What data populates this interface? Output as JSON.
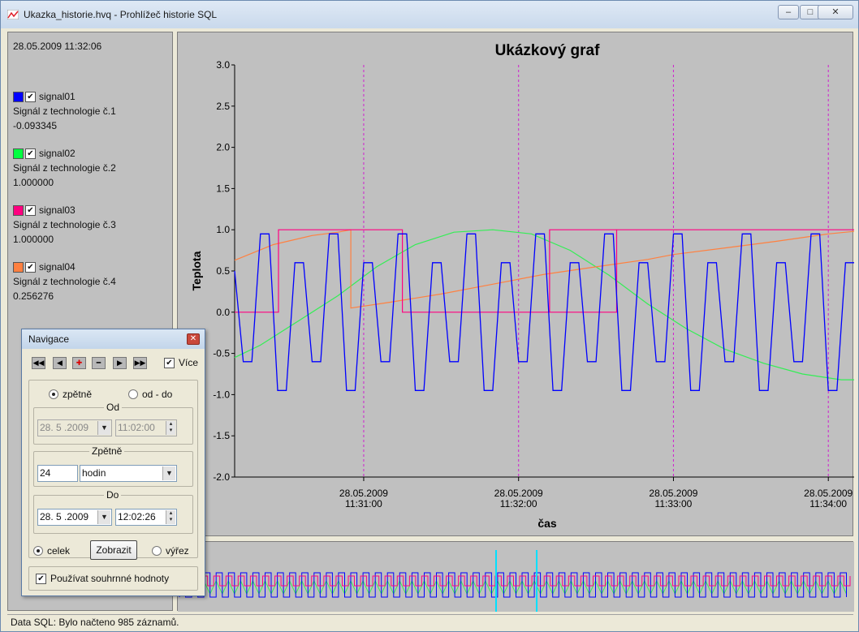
{
  "window": {
    "title": "Ukazka_historie.hvq - Prohlížeč historie SQL",
    "minimize": "‒",
    "maximize": "□",
    "close": "✕"
  },
  "left_panel": {
    "datetime": "28.05.2009  11:32:06",
    "signals": [
      {
        "name": "signal01",
        "description": "Signál z technologie č.1",
        "value": "-0.093345",
        "color": "#0000ff",
        "checked": true
      },
      {
        "name": "signal02",
        "description": "Signál z technologie č.2",
        "value": "1.000000",
        "color": "#00ff40",
        "checked": true
      },
      {
        "name": "signal03",
        "description": "Signál z technologie č.3",
        "value": "1.000000",
        "color": "#ff0080",
        "checked": true
      },
      {
        "name": "signal04",
        "description": "Signál z technologie č.4",
        "value": "0.256276",
        "color": "#ff8040",
        "checked": true
      }
    ]
  },
  "chart_data": {
    "type": "line",
    "title": "Ukázkový graf",
    "xlabel": "čas",
    "ylabel": "Teplota",
    "ylim": [
      -2.0,
      3.0
    ],
    "yticks": [
      "3.0",
      "2.5",
      "2.0",
      "1.5",
      "1.0",
      "0.5",
      "0.0",
      "-0.5",
      "-1.0",
      "-1.5",
      "-2.0"
    ],
    "xticks": [
      {
        "date": "28.05.2009",
        "time": "11:31:00"
      },
      {
        "date": "28.05.2009",
        "time": "11:32:00"
      },
      {
        "date": "28.05.2009",
        "time": "11:33:00"
      },
      {
        "date": "28.05.2009",
        "time": "11:34:00"
      }
    ],
    "x_seconds_range": [
      10,
      250
    ],
    "series": [
      {
        "name": "signal01",
        "color": "#0000ff",
        "pattern_y": [
          0.5,
          -0.6,
          -0.6,
          0.95,
          0.95,
          -0.95,
          -0.95,
          0.6,
          0.6,
          -0.6,
          -0.6,
          0.95,
          0.95,
          -0.95,
          -0.95,
          0.6,
          0.6,
          -0.6,
          -0.6,
          0.95,
          0.95,
          -0.95,
          -0.95,
          0.6,
          0.6,
          -0.6,
          -0.6,
          0.95,
          0.95,
          -0.95,
          -0.95,
          0.6,
          0.6,
          -0.6,
          -0.6,
          0.95,
          0.95,
          -0.95,
          -0.95,
          0.6,
          0.6,
          -0.6,
          -0.6,
          0.95,
          0.95,
          -0.95,
          -0.95,
          0.6,
          0.6,
          -0.6,
          -0.6,
          0.95,
          0.95,
          -0.95,
          -0.95,
          0.6,
          0.6,
          -0.6,
          -0.6,
          0.95,
          0.95,
          -0.95,
          -0.95,
          0.6,
          0.6,
          -0.6,
          -0.6,
          0.95,
          0.95,
          -0.95,
          -0.95,
          0.6,
          0.6
        ]
      },
      {
        "name": "signal02",
        "color": "#33ee55",
        "points": [
          [
            10,
            -0.55
          ],
          [
            20,
            -0.4
          ],
          [
            35,
            -0.1
          ],
          [
            50,
            0.2
          ],
          [
            65,
            0.55
          ],
          [
            80,
            0.82
          ],
          [
            95,
            0.97
          ],
          [
            110,
            1.0
          ],
          [
            125,
            0.95
          ],
          [
            140,
            0.75
          ],
          [
            155,
            0.45
          ],
          [
            170,
            0.1
          ],
          [
            185,
            -0.2
          ],
          [
            200,
            -0.45
          ],
          [
            215,
            -0.62
          ],
          [
            230,
            -0.75
          ],
          [
            245,
            -0.82
          ],
          [
            250,
            -0.82
          ]
        ]
      },
      {
        "name": "signal03",
        "color": "#ff0080",
        "points": [
          [
            10,
            0.0
          ],
          [
            27,
            0.0
          ],
          [
            27,
            1.0
          ],
          [
            75,
            1.0
          ],
          [
            75,
            0.0
          ],
          [
            158,
            0.0
          ],
          [
            158,
            1.0
          ],
          [
            250,
            1.0
          ]
        ],
        "extra": [
          [
            132,
            0.0
          ],
          [
            132,
            1.0
          ],
          [
            158,
            1.0
          ]
        ]
      },
      {
        "name": "signal04",
        "color": "#ff8040",
        "points": [
          [
            10,
            0.63
          ],
          [
            25,
            0.82
          ],
          [
            40,
            0.93
          ],
          [
            50,
            0.97
          ],
          [
            55,
            1.0
          ],
          [
            55,
            0.05
          ],
          [
            70,
            0.12
          ],
          [
            90,
            0.22
          ],
          [
            110,
            0.34
          ],
          [
            130,
            0.46
          ],
          [
            150,
            0.55
          ],
          [
            170,
            0.64
          ],
          [
            180,
            0.7
          ],
          [
            200,
            0.78
          ],
          [
            220,
            0.86
          ],
          [
            240,
            0.95
          ],
          [
            250,
            0.98
          ]
        ]
      }
    ]
  },
  "navigation": {
    "title": "Navigace",
    "more_label": "Více",
    "mode_back": "zpětně",
    "mode_range": "od - do",
    "from_legend": "Od",
    "from_date": "28. 5 .2009",
    "from_time": "11:02:00",
    "back_legend": "Zpětně",
    "back_count": "24",
    "back_unit": "hodin",
    "to_legend": "Do",
    "to_date": "28. 5 .2009",
    "to_time": "12:02:26",
    "whole_label": "celek",
    "show_button": "Zobrazit",
    "cut_label": "výřez",
    "summary_label": "Používat souhrnné hodnoty"
  },
  "status_bar": {
    "text": "Data SQL: Bylo načteno 985 záznamů."
  }
}
